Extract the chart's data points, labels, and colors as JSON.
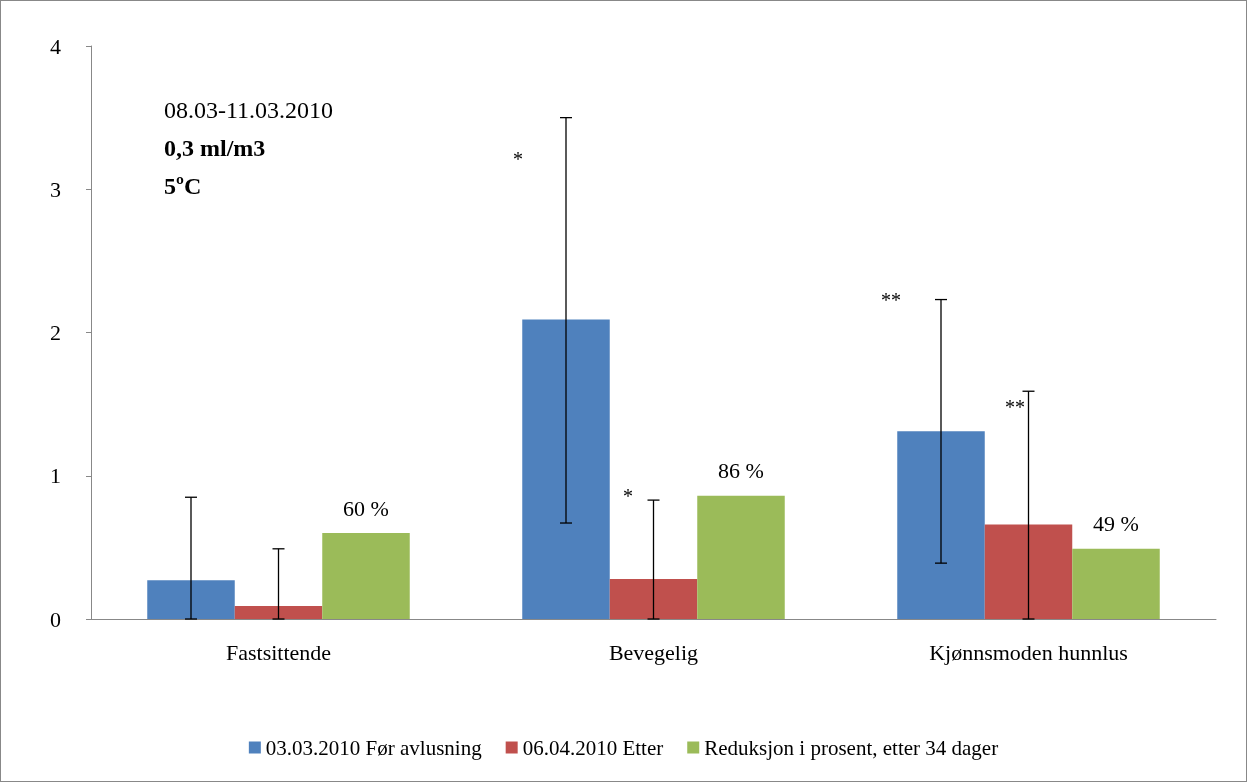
{
  "chart_data": {
    "type": "bar",
    "categories": [
      "Fastsittende",
      "Bevegelig",
      "Kjønnsmoden hunnlus"
    ],
    "series": [
      {
        "name": "03.03.2010 Før avlusning",
        "color": "#4f81bd",
        "values": [
          0.27,
          2.09,
          1.31
        ],
        "errors": [
          [
            0,
            0.85
          ],
          [
            0.67,
            3.5
          ],
          [
            0.39,
            2.23
          ]
        ]
      },
      {
        "name": "06.04.2010 Etter",
        "color": "#c0504d",
        "values": [
          0.09,
          0.28,
          0.66
        ],
        "errors": [
          [
            0,
            0.49
          ],
          [
            0,
            0.83
          ],
          [
            0,
            1.59
          ]
        ]
      },
      {
        "name": "Reduksjon i prosent, etter 34 dager",
        "color": "#9bbb59",
        "values": [
          0.6,
          0.86,
          0.49
        ],
        "value_labels": [
          "60 %",
          "86 %",
          "49 %"
        ]
      }
    ],
    "ylim": [
      0,
      4
    ],
    "yticks": [
      0,
      1,
      2,
      3,
      4
    ],
    "grid": false,
    "legend": "bottom",
    "annotations": [
      "08.03-11.03.2010",
      "0,3 ml/m3",
      "5ºC",
      "*",
      "*",
      "**",
      "**"
    ]
  }
}
